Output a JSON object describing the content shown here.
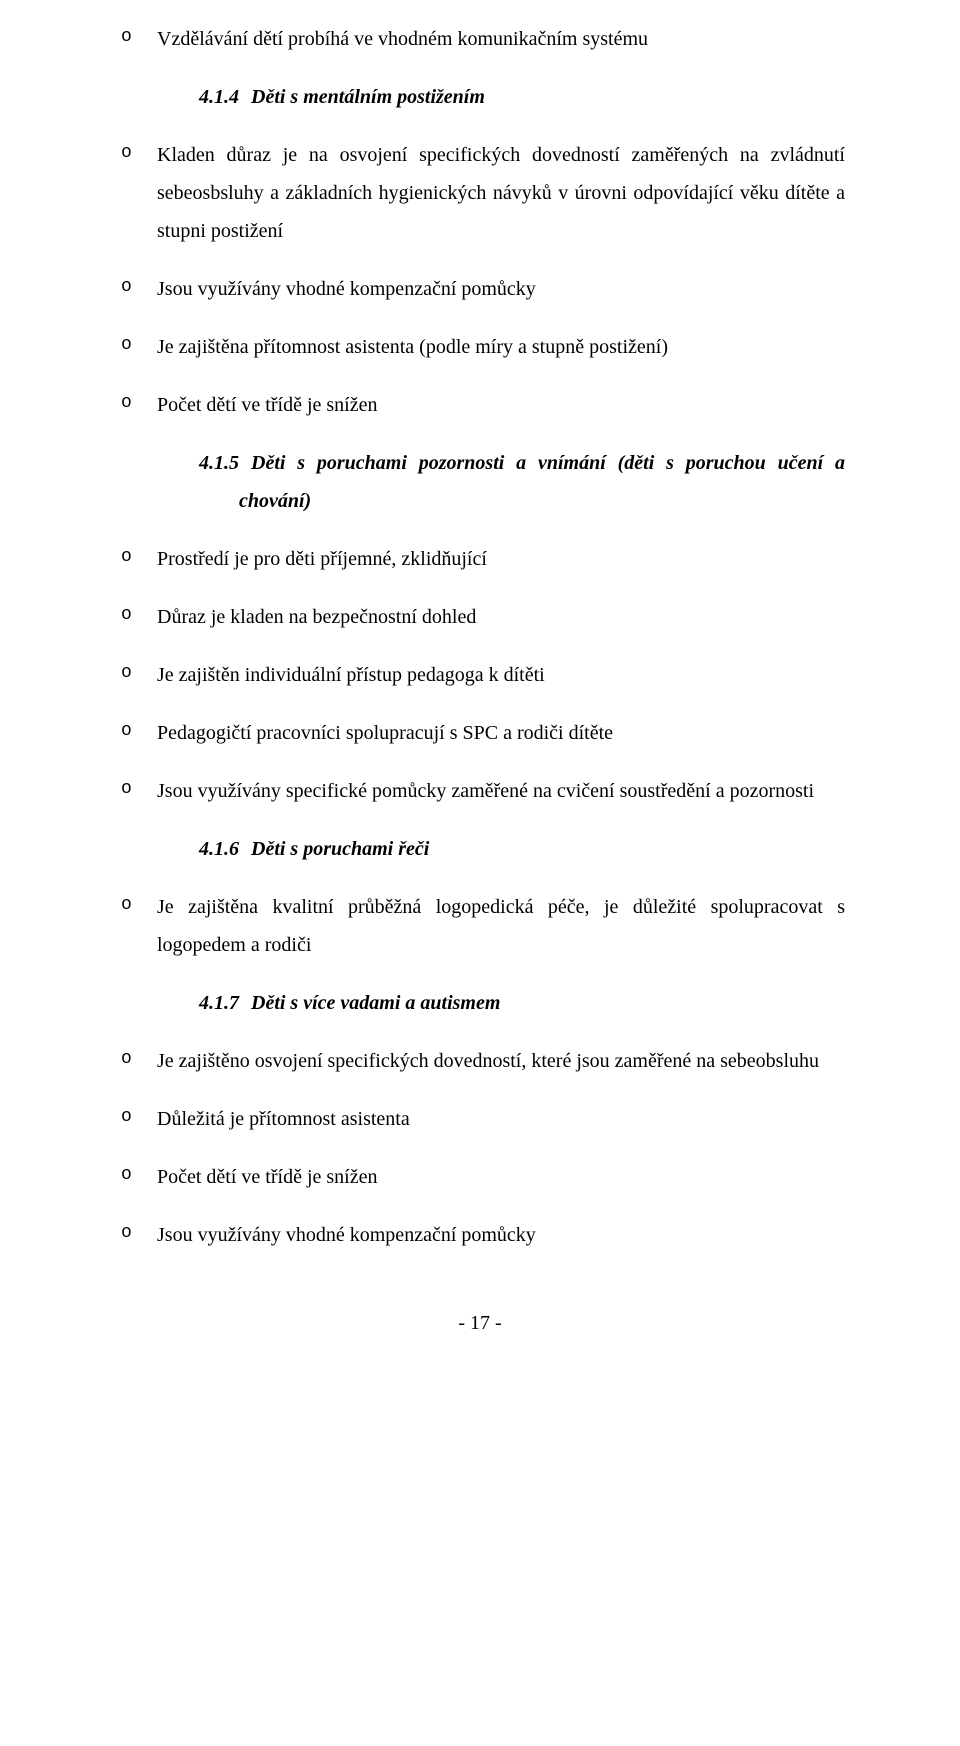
{
  "b1": "Vzdělávání dětí probíhá ve vhodném komunikačním systému",
  "h414_num": "4.1.4",
  "h414_title": "Děti s mentálním postižením",
  "b2": "Kladen důraz je na osvojení specifických dovedností zaměřených na zvládnutí sebeosbsluhy a základních hygienických návyků v úrovni odpovídající věku dítěte a stupni postižení",
  "b3": "Jsou využívány vhodné kompenzační pomůcky",
  "b4": "Je zajištěna přítomnost asistenta (podle míry a stupně postižení)",
  "b5": "Počet dětí ve třídě je snížen",
  "h415_num": "4.1.5",
  "h415_title": "Děti s poruchami pozornosti a vnímání (děti s poruchou učení a chování)",
  "b6": "Prostředí je pro děti příjemné, zklidňující",
  "b7": "Důraz je kladen na bezpečnostní dohled",
  "b8": "Je zajištěn individuální přístup pedagoga k dítěti",
  "b9": "Pedagogičtí pracovníci spolupracují s SPC a rodiči dítěte",
  "b10": "Jsou využívány specifické pomůcky zaměřené na cvičení soustředění a pozornosti",
  "h416_num": "4.1.6",
  "h416_title": "Děti s poruchami řeči",
  "b11": "Je zajištěna kvalitní průběžná logopedická péče, je důležité spolupracovat s logopedem a rodiči",
  "h417_num": "4.1.7",
  "h417_title": "Děti s více vadami a autismem",
  "b12": "Je zajištěno osvojení specifických dovedností, které jsou zaměřené na sebeobsluhu",
  "b13": "Důležitá je přítomnost asistenta",
  "b14": "Počet dětí ve třídě je snížen",
  "b15": "Jsou využívány vhodné kompenzační pomůcky",
  "page_num": "- 17 -"
}
